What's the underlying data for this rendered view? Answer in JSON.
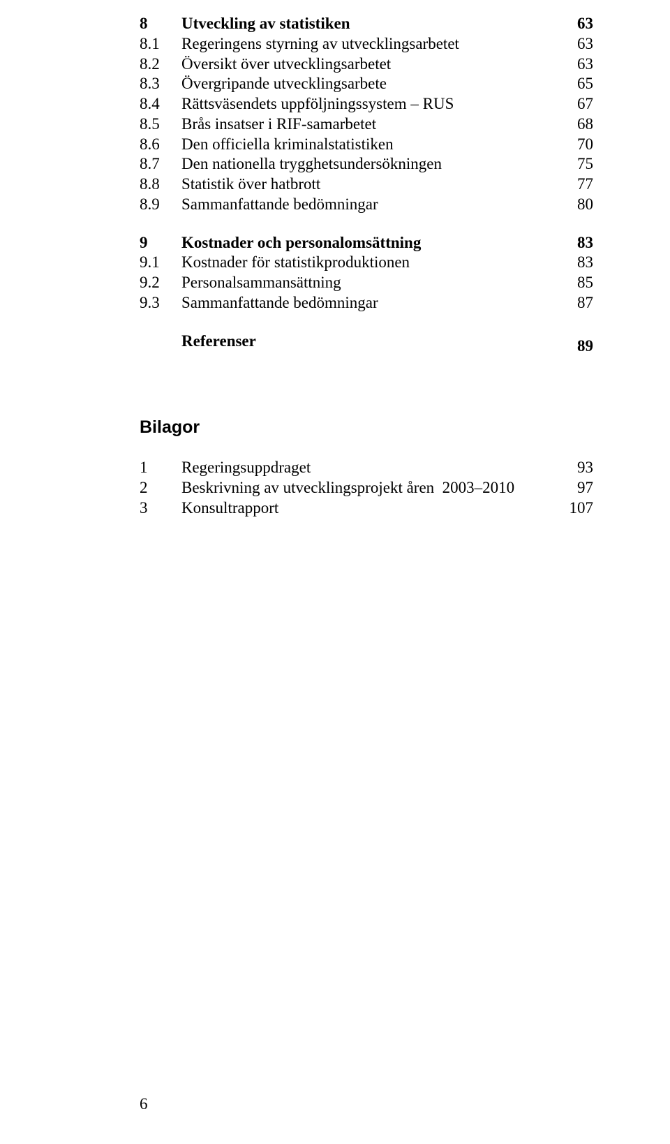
{
  "section8": {
    "heading": {
      "num": "8",
      "title": "Utveckling av statistiken",
      "page": "63"
    },
    "items": [
      {
        "num": "8.1",
        "title": "Regeringens styrning av utvecklingsarbetet",
        "page": "63"
      },
      {
        "num": "8.2",
        "title": "Översikt över utvecklingsarbetet",
        "page": "63"
      },
      {
        "num": "8.3",
        "title": "Övergripande utvecklingsarbete",
        "page": "65"
      },
      {
        "num": "8.4",
        "title": "Rättsväsendets uppföljningssystem – RUS",
        "page": "67"
      },
      {
        "num": "8.5",
        "title": "Brås insatser i RIF-samarbetet",
        "page": "68"
      },
      {
        "num": "8.6",
        "title": "Den officiella kriminalstatistiken",
        "page": "70"
      },
      {
        "num": "8.7",
        "title": "Den nationella trygghetsundersökningen",
        "page": "75"
      },
      {
        "num": "8.8",
        "title": "Statistik över hatbrott",
        "page": "77"
      },
      {
        "num": "8.9",
        "title": "Sammanfattande bedömningar",
        "page": "80"
      }
    ]
  },
  "section9": {
    "heading": {
      "num": "9",
      "title": "Kostnader och personalomsättning",
      "page": "83"
    },
    "items": [
      {
        "num": "9.1",
        "title": "Kostnader för statistikproduktionen",
        "page": "83"
      },
      {
        "num": "9.2",
        "title": "Personalsammansättning",
        "page": "85"
      },
      {
        "num": "9.3",
        "title": "Sammanfattande bedömningar",
        "page": "87"
      }
    ]
  },
  "references": {
    "title": "Referenser",
    "page": "89"
  },
  "bilagor": {
    "heading": "Bilagor",
    "items": [
      {
        "num": "1",
        "title": "Regeringsuppdraget",
        "page": "93"
      },
      {
        "num": "2",
        "title": "Beskrivning av utvecklingsprojekt åren  2003–2010",
        "page": "97"
      },
      {
        "num": "3",
        "title": "Konsultrapport",
        "page": "107"
      }
    ]
  },
  "footerPage": "6"
}
